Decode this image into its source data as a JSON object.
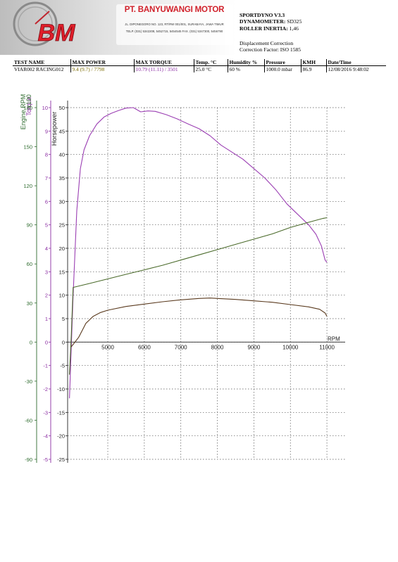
{
  "header": {
    "logo_text": "BM",
    "company_name": "PT. BANYUWANGI MOTOR",
    "company_address_1": "JL. DIPONEGORO NO. 123, RT/RW 001/001, SURABAYA, JAWA TIMUR",
    "company_address_2": "TELP. (031) 5342208, 5452715, 5454545 FAX. (031) 5347300, 5456790",
    "software": "SPORTDYNO V3.3",
    "dynamometer_label": "DYNAMOMETER:",
    "dynamometer_value": "SD325",
    "roller_inertia_label": "ROLLER INERTIA:",
    "roller_inertia_value": "1,46",
    "displacement_correction": "Displacement Correction",
    "correction_factor": "Correction Factor: ISO 1585"
  },
  "results_table": {
    "headers": [
      "TEST NAME",
      "MAX POWER",
      "MAX TORQUE",
      "Temp. °C",
      "Humidity %",
      "Pressure",
      "KMH",
      "Date/Time"
    ],
    "row": [
      "VIAR002 RACING012",
      "9.4 (9.7) / 7798",
      "10.79 (11.11) / 3501",
      "25.0 °C",
      "60 %",
      "1000.0 mbar",
      "86.9",
      "12/08/2016 9:48:02"
    ]
  },
  "chart_data": {
    "type": "line",
    "xlabel": "RPM",
    "x_ticks": [
      5000,
      6000,
      7000,
      8000,
      9000,
      10000,
      11000
    ],
    "xlim": [
      3900,
      11500
    ],
    "axes": [
      {
        "label": "Horsepower",
        "ticks": [
          50,
          45,
          40,
          35,
          30,
          25,
          20,
          15,
          10,
          5,
          0,
          -5,
          -10,
          -15,
          -20,
          -25
        ],
        "ylim": [
          -25,
          50
        ],
        "color": "#333333"
      },
      {
        "label": "Torque",
        "ticks": [
          10,
          9,
          8,
          7,
          6,
          5,
          4,
          3,
          2,
          1,
          0,
          -1,
          -2,
          -3,
          -4,
          -5
        ],
        "ylim": [
          -5,
          10
        ],
        "color": "#8a2ba2"
      },
      {
        "label": "Engine RPM",
        "sublabel": "x100",
        "ticks": [
          180,
          150,
          120,
          90,
          60,
          30,
          0,
          -30,
          -60,
          -90
        ],
        "ylim": [
          -90,
          180
        ],
        "color": "#2e6b2e"
      }
    ],
    "series": [
      {
        "color": "#9b3fb3",
        "axis": "Horsepower",
        "x": [
          3950,
          4050,
          4150,
          4250,
          4350,
          4500,
          4700,
          4900,
          5100,
          5300,
          5500,
          5700,
          5900,
          6100,
          6300,
          6600,
          6900,
          7200,
          7500,
          7800,
          8100,
          8400,
          8700,
          9000,
          9300,
          9600,
          9900,
          10100,
          10300,
          10500,
          10700,
          10850,
          10950,
          11000
        ],
        "y": [
          -12,
          10,
          28,
          37,
          41,
          44,
          46.5,
          48,
          48.8,
          49.4,
          49.9,
          50,
          49.1,
          49.3,
          49.2,
          48.5,
          47.6,
          46.5,
          45.5,
          44,
          42,
          40.5,
          39,
          37,
          35,
          32.5,
          29.5,
          28,
          26.5,
          25,
          23,
          20.5,
          17.5,
          17
        ]
      },
      {
        "color": "#5a3a1e",
        "axis": "Horsepower",
        "x": [
          4000,
          4200,
          4400,
          4600,
          4800,
          5000,
          5500,
          6000,
          6500,
          7000,
          7500,
          7800,
          8000,
          8500,
          9000,
          9500,
          10000,
          10500,
          10800,
          10950,
          11000
        ],
        "y": [
          -1,
          1,
          4,
          5.5,
          6.3,
          6.8,
          7.6,
          8.1,
          8.6,
          9.0,
          9.3,
          9.4,
          9.3,
          9.1,
          8.8,
          8.5,
          8.0,
          7.5,
          7.0,
          6.2,
          5.5
        ]
      },
      {
        "color": "#4a6a2a",
        "axis": "Engine RPM",
        "x": [
          3950,
          4000,
          4050,
          4500,
          5000,
          5500,
          6000,
          6500,
          7000,
          7500,
          8000,
          8500,
          9000,
          9500,
          10000,
          10500,
          10900,
          11000
        ],
        "y": [
          -25,
          5,
          42,
          45,
          48.5,
          52,
          55.5,
          59,
          63,
          67,
          71,
          75,
          79,
          83,
          88,
          92,
          95,
          95.5
        ]
      }
    ]
  }
}
